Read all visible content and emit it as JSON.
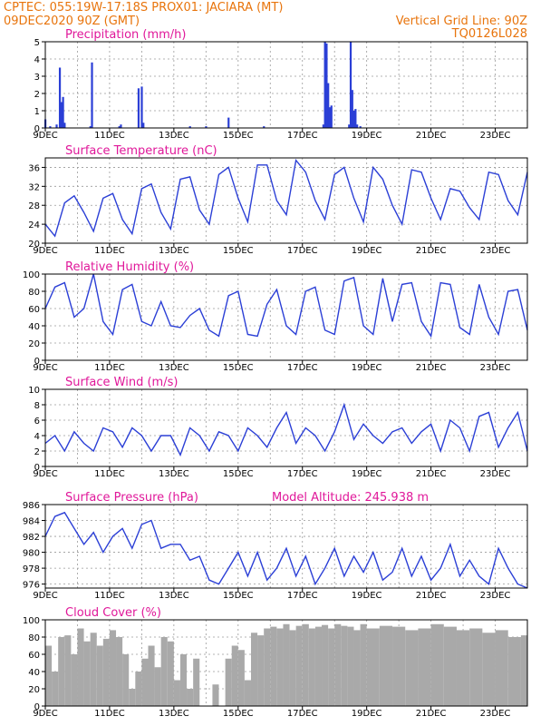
{
  "header": {
    "line1_left": "CPTEC:   055:19W-17:18S   PROX01: JACIARA (MT)",
    "line2_left": "09DEC2020 90Z (GMT)",
    "line2_right": "Vertical Grid Line: 90Z",
    "line3_right": "TQ0126L028"
  },
  "colors": {
    "title": "#e0189a",
    "header": "#e8740c",
    "line": "#2b3fd6",
    "bar": "#2b3fd6",
    "cloud": "#a9a9a9",
    "arrow": "#000000"
  },
  "chart_data": [
    {
      "type": "bar",
      "title": "Precipitation (mm/h)",
      "ylim": [
        0,
        5
      ],
      "yticks": [
        "0",
        "1",
        "2",
        "3",
        "4",
        "5"
      ],
      "xticks": [
        "9DEC",
        "11DEC",
        "13DEC",
        "15DEC",
        "17DEC",
        "19DEC",
        "21DEC",
        "23DEC"
      ],
      "x_days": [
        0,
        0.15,
        0.35,
        0.45,
        0.5,
        0.55,
        0.6,
        1.4,
        1.45,
        2.3,
        2.35,
        2.9,
        3.0,
        3.05,
        4.5,
        5.0,
        5.7,
        6.8,
        8.65,
        8.7,
        8.75,
        8.8,
        8.85,
        8.9,
        9.45,
        9.5,
        9.55,
        9.6,
        9.65,
        9.7,
        9.8
      ],
      "values": [
        0.5,
        0.1,
        0.2,
        3.5,
        1.5,
        1.8,
        0.3,
        0.1,
        3.8,
        0.1,
        0.2,
        2.3,
        2.4,
        0.3,
        0.1,
        0.1,
        0.6,
        0.1,
        0.2,
        5.0,
        4.9,
        2.6,
        1.2,
        1.3,
        0.2,
        5.0,
        2.2,
        1.0,
        1.1,
        0.2,
        0.1
      ]
    },
    {
      "type": "line",
      "title": "Surface Temperature (nC)",
      "ylim": [
        20,
        38
      ],
      "yticks": [
        "20",
        "24",
        "28",
        "32",
        "36"
      ],
      "xticks": [
        "9DEC",
        "11DEC",
        "13DEC",
        "15DEC",
        "17DEC",
        "19DEC",
        "21DEC",
        "23DEC"
      ],
      "x_days": [
        0,
        0.3,
        0.6,
        0.9,
        1.2,
        1.5,
        1.8,
        2.1,
        2.4,
        2.7,
        3.0,
        3.3,
        3.6,
        3.9,
        4.2,
        4.5,
        4.8,
        5.1,
        5.4,
        5.7,
        6.0,
        6.3,
        6.6,
        6.9,
        7.2,
        7.5,
        7.8,
        8.1,
        8.4,
        8.7,
        9.0,
        9.3,
        9.6,
        9.9,
        10.2,
        10.5,
        10.8,
        11.1,
        11.4,
        11.7,
        12.0,
        12.3,
        12.6,
        12.9,
        13.2,
        13.5,
        13.8,
        14.1,
        14.4,
        14.7,
        15.0
      ],
      "values": [
        24,
        21.5,
        28.5,
        30,
        26.5,
        22.5,
        29.5,
        30.5,
        25,
        22,
        31.5,
        32.5,
        26.5,
        23,
        33.5,
        34,
        27,
        24,
        34.5,
        36,
        29.5,
        24.5,
        36.5,
        36.5,
        29,
        26,
        37.5,
        35,
        29,
        25,
        34.5,
        36,
        29.5,
        24.5,
        36,
        33.5,
        28,
        24,
        35.5,
        35,
        29.5,
        25,
        31.5,
        31,
        27.5,
        25,
        35,
        34.5,
        29,
        26,
        35
      ]
    },
    {
      "type": "line",
      "title": "Relative Humidity (%)",
      "ylim": [
        0,
        100
      ],
      "yticks": [
        "0",
        "20",
        "40",
        "60",
        "80",
        "100"
      ],
      "xticks": [
        "9DEC",
        "11DEC",
        "13DEC",
        "15DEC",
        "17DEC",
        "19DEC",
        "21DEC",
        "23DEC"
      ],
      "x_days": [
        0,
        0.3,
        0.6,
        0.9,
        1.2,
        1.5,
        1.8,
        2.1,
        2.4,
        2.7,
        3.0,
        3.3,
        3.6,
        3.9,
        4.2,
        4.5,
        4.8,
        5.1,
        5.4,
        5.7,
        6.0,
        6.3,
        6.6,
        6.9,
        7.2,
        7.5,
        7.8,
        8.1,
        8.4,
        8.7,
        9.0,
        9.3,
        9.6,
        9.9,
        10.2,
        10.5,
        10.8,
        11.1,
        11.4,
        11.7,
        12.0,
        12.3,
        12.6,
        12.9,
        13.2,
        13.5,
        13.8,
        14.1,
        14.4,
        14.7,
        15.0
      ],
      "values": [
        60,
        85,
        90,
        50,
        60,
        100,
        45,
        30,
        82,
        88,
        45,
        40,
        68,
        40,
        38,
        52,
        60,
        35,
        28,
        75,
        80,
        30,
        28,
        65,
        82,
        40,
        30,
        80,
        85,
        35,
        30,
        92,
        96,
        40,
        30,
        95,
        45,
        88,
        90,
        45,
        28,
        90,
        88,
        38,
        30,
        88,
        50,
        30,
        80,
        82,
        35
      ]
    },
    {
      "type": "line",
      "title": "Surface Wind (m/s)",
      "ylim": [
        0,
        10
      ],
      "yticks": [
        "0",
        "2",
        "4",
        "6",
        "8",
        "10"
      ],
      "xticks": [
        "9DEC",
        "11DEC",
        "13DEC",
        "15DEC",
        "17DEC",
        "19DEC",
        "21DEC",
        "23DEC"
      ],
      "x_days": [
        0,
        0.3,
        0.6,
        0.9,
        1.2,
        1.5,
        1.8,
        2.1,
        2.4,
        2.7,
        3.0,
        3.3,
        3.6,
        3.9,
        4.2,
        4.5,
        4.8,
        5.1,
        5.4,
        5.7,
        6.0,
        6.3,
        6.6,
        6.9,
        7.2,
        7.5,
        7.8,
        8.1,
        8.4,
        8.7,
        9.0,
        9.3,
        9.6,
        9.9,
        10.2,
        10.5,
        10.8,
        11.1,
        11.4,
        11.7,
        12.0,
        12.3,
        12.6,
        12.9,
        13.2,
        13.5,
        13.8,
        14.1,
        14.4,
        14.7,
        15.0
      ],
      "values": [
        3,
        4,
        2,
        4.5,
        3,
        2,
        5,
        4.5,
        2.5,
        5,
        4,
        2,
        4,
        4,
        1.5,
        5,
        4,
        2,
        4.5,
        4,
        2,
        5,
        4,
        2.5,
        5,
        7,
        3,
        5,
        4,
        2,
        4.5,
        8,
        3.5,
        5.5,
        4,
        3,
        4.5,
        5,
        3,
        4.5,
        5.5,
        2,
        6,
        5,
        2,
        6.5,
        7,
        2.5,
        5,
        7,
        2
      ]
    },
    {
      "type": "line",
      "title": "Surface Pressure (hPa)",
      "annotation": "Model Altitude: 245.938  m",
      "ylim": [
        975.5,
        986
      ],
      "yticks": [
        "976",
        "978",
        "980",
        "982",
        "984",
        "986"
      ],
      "xticks": [
        "9DEC",
        "11DEC",
        "13DEC",
        "15DEC",
        "17DEC",
        "19DEC",
        "21DEC",
        "23DEC"
      ],
      "x_days": [
        0,
        0.3,
        0.6,
        0.9,
        1.2,
        1.5,
        1.8,
        2.1,
        2.4,
        2.7,
        3.0,
        3.3,
        3.6,
        3.9,
        4.2,
        4.5,
        4.8,
        5.1,
        5.4,
        5.7,
        6.0,
        6.3,
        6.6,
        6.9,
        7.2,
        7.5,
        7.8,
        8.1,
        8.4,
        8.7,
        9.0,
        9.3,
        9.6,
        9.9,
        10.2,
        10.5,
        10.8,
        11.1,
        11.4,
        11.7,
        12.0,
        12.3,
        12.6,
        12.9,
        13.2,
        13.5,
        13.8,
        14.1,
        14.4,
        14.7,
        15.0
      ],
      "values": [
        982,
        984.5,
        985,
        983,
        981,
        982.5,
        980,
        982,
        983,
        980.5,
        983.5,
        984,
        980.5,
        981,
        981,
        979,
        979.5,
        976.5,
        976,
        978,
        980,
        977,
        980,
        976.5,
        978,
        980.5,
        977,
        979.5,
        976,
        978,
        980.5,
        977,
        979.5,
        977.5,
        980,
        976.5,
        977.5,
        980.5,
        977,
        979.5,
        976.5,
        978,
        981,
        977,
        979,
        977,
        976,
        980.5,
        978,
        976,
        975.5
      ]
    },
    {
      "type": "area",
      "title": "Cloud Cover (%)",
      "ylim": [
        0,
        100
      ],
      "yticks": [
        "0",
        "20",
        "40",
        "60",
        "80",
        "100"
      ],
      "xticks": [
        "9DEC",
        "11DEC",
        "13DEC",
        "15DEC",
        "17DEC",
        "19DEC",
        "21DEC",
        "23DEC"
      ],
      "x_days": [
        0,
        0.2,
        0.4,
        0.6,
        0.8,
        1.0,
        1.2,
        1.4,
        1.6,
        1.8,
        2.0,
        2.2,
        2.4,
        2.6,
        2.8,
        3.0,
        3.2,
        3.4,
        3.6,
        3.8,
        4.0,
        4.2,
        4.4,
        4.6,
        4.8,
        5.0,
        5.2,
        5.4,
        5.6,
        5.8,
        6.0,
        6.2,
        6.4,
        6.6,
        6.8,
        7.0,
        7.2,
        7.4,
        7.6,
        7.8,
        8.0,
        8.2,
        8.4,
        8.6,
        8.8,
        9.0,
        9.2,
        9.4,
        9.6,
        9.8,
        10.0,
        10.4,
        10.8,
        11.2,
        11.6,
        12.0,
        12.4,
        12.8,
        13.2,
        13.6,
        14.0,
        14.4,
        14.8,
        15.0
      ],
      "values": [
        70,
        40,
        80,
        82,
        60,
        90,
        75,
        85,
        70,
        78,
        88,
        80,
        60,
        20,
        40,
        55,
        70,
        45,
        80,
        75,
        30,
        60,
        20,
        55,
        0,
        0,
        25,
        0,
        55,
        70,
        65,
        30,
        85,
        82,
        90,
        92,
        90,
        95,
        88,
        93,
        95,
        90,
        92,
        94,
        90,
        95,
        93,
        92,
        88,
        95,
        90,
        93,
        92,
        88,
        90,
        95,
        92,
        88,
        90,
        85,
        88,
        80,
        82,
        88
      ]
    }
  ]
}
